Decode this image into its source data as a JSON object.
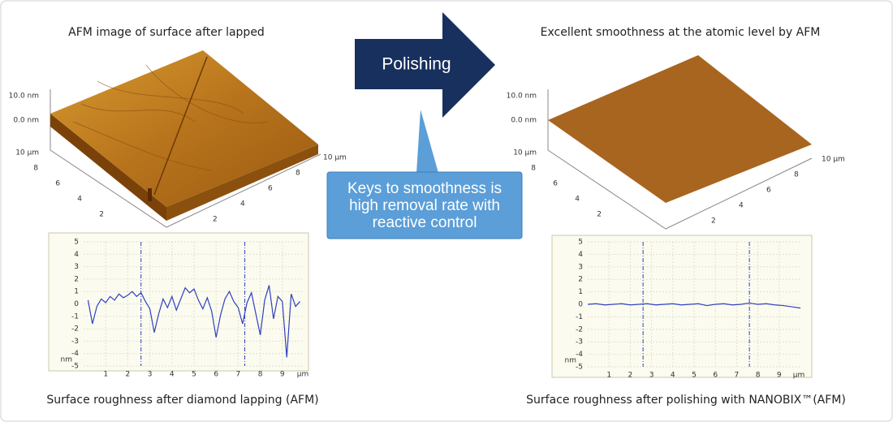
{
  "left": {
    "title": "AFM image of surface after lapped",
    "afm": {
      "z_labels": [
        "10.0 nm",
        "0.0 nm"
      ],
      "y_labels": [
        "10 µm",
        "8",
        "6",
        "4",
        "2"
      ],
      "x_labels": [
        "2",
        "4",
        "6",
        "8",
        "10 µm"
      ]
    },
    "profile": {
      "type": "line",
      "x": [
        0.2,
        0.4,
        0.6,
        0.8,
        1.0,
        1.2,
        1.4,
        1.6,
        1.8,
        2.0,
        2.2,
        2.4,
        2.6,
        2.8,
        3.0,
        3.2,
        3.4,
        3.6,
        3.8,
        4.0,
        4.2,
        4.4,
        4.6,
        4.8,
        5.0,
        5.2,
        5.4,
        5.6,
        5.8,
        6.0,
        6.2,
        6.4,
        6.6,
        6.8,
        7.0,
        7.2,
        7.4,
        7.6,
        7.8,
        8.0,
        8.2,
        8.4,
        8.6,
        8.8,
        9.0,
        9.2,
        9.4,
        9.6,
        9.8
      ],
      "values": [
        0.3,
        -1.6,
        -0.2,
        0.4,
        0.1,
        0.6,
        0.3,
        0.8,
        0.5,
        0.7,
        1.0,
        0.6,
        0.9,
        0.2,
        -0.4,
        -2.3,
        -0.8,
        0.4,
        -0.3,
        0.6,
        -0.5,
        0.4,
        1.3,
        0.9,
        1.2,
        0.3,
        -0.4,
        0.5,
        -0.6,
        -2.7,
        -0.9,
        0.4,
        1.0,
        0.2,
        -0.3,
        -1.6,
        0.1,
        0.9,
        -0.8,
        -2.5,
        0.3,
        1.5,
        -1.2,
        0.6,
        0.2,
        -4.3,
        0.8,
        -0.2,
        0.2
      ],
      "color": "#3040c0",
      "xlim": [
        0,
        10
      ],
      "ylim": [
        -5,
        5
      ],
      "xticks": [
        1,
        2,
        3,
        4,
        5,
        6,
        7,
        8,
        9
      ],
      "yticks": [
        5,
        4,
        3,
        2,
        1,
        0,
        -1,
        -2,
        -3,
        -4,
        -5
      ],
      "x_unit": "μm",
      "y_unit": "nm",
      "cursors": [
        2.6,
        7.3
      ],
      "grid": true
    },
    "caption": "Surface roughness after diamond lapping (AFM)"
  },
  "arrow": "Polishing",
  "callout": "Keys to smoothness is high removal rate with reactive control",
  "right": {
    "title": "Excellent smoothness at the atomic level by AFM",
    "afm": {
      "z_labels": [
        "10.0 nm",
        "0.0 nm"
      ],
      "y_labels": [
        "10 µm",
        "8",
        "6",
        "4",
        "2"
      ],
      "x_labels": [
        "2",
        "4",
        "6",
        "8",
        "10 µm"
      ]
    },
    "profile": {
      "type": "line",
      "x": [
        0.0,
        0.4,
        0.8,
        1.2,
        1.6,
        2.0,
        2.4,
        2.8,
        3.2,
        3.6,
        4.0,
        4.4,
        4.8,
        5.2,
        5.6,
        6.0,
        6.4,
        6.8,
        7.2,
        7.6,
        8.0,
        8.4,
        8.8,
        9.2,
        9.6,
        10.0
      ],
      "values": [
        0.0,
        0.05,
        -0.05,
        0.0,
        0.05,
        -0.05,
        0.0,
        0.05,
        -0.05,
        0.0,
        0.05,
        -0.05,
        0.0,
        0.05,
        -0.1,
        0.0,
        0.05,
        -0.05,
        0.0,
        0.1,
        0.0,
        0.05,
        -0.05,
        -0.1,
        -0.2,
        -0.3
      ],
      "color": "#3040c0",
      "xlim": [
        0,
        10
      ],
      "ylim": [
        -5,
        5
      ],
      "xticks": [
        1,
        2,
        3,
        4,
        5,
        6,
        7,
        8,
        9
      ],
      "yticks": [
        5,
        4,
        3,
        2,
        1,
        0,
        -1,
        -2,
        -3,
        -4,
        -5
      ],
      "x_unit": "μm",
      "y_unit": "nm",
      "cursors": [
        2.6,
        7.6
      ],
      "grid": true
    },
    "caption": "Surface roughness after polishing with NANOBIX™(AFM)"
  }
}
